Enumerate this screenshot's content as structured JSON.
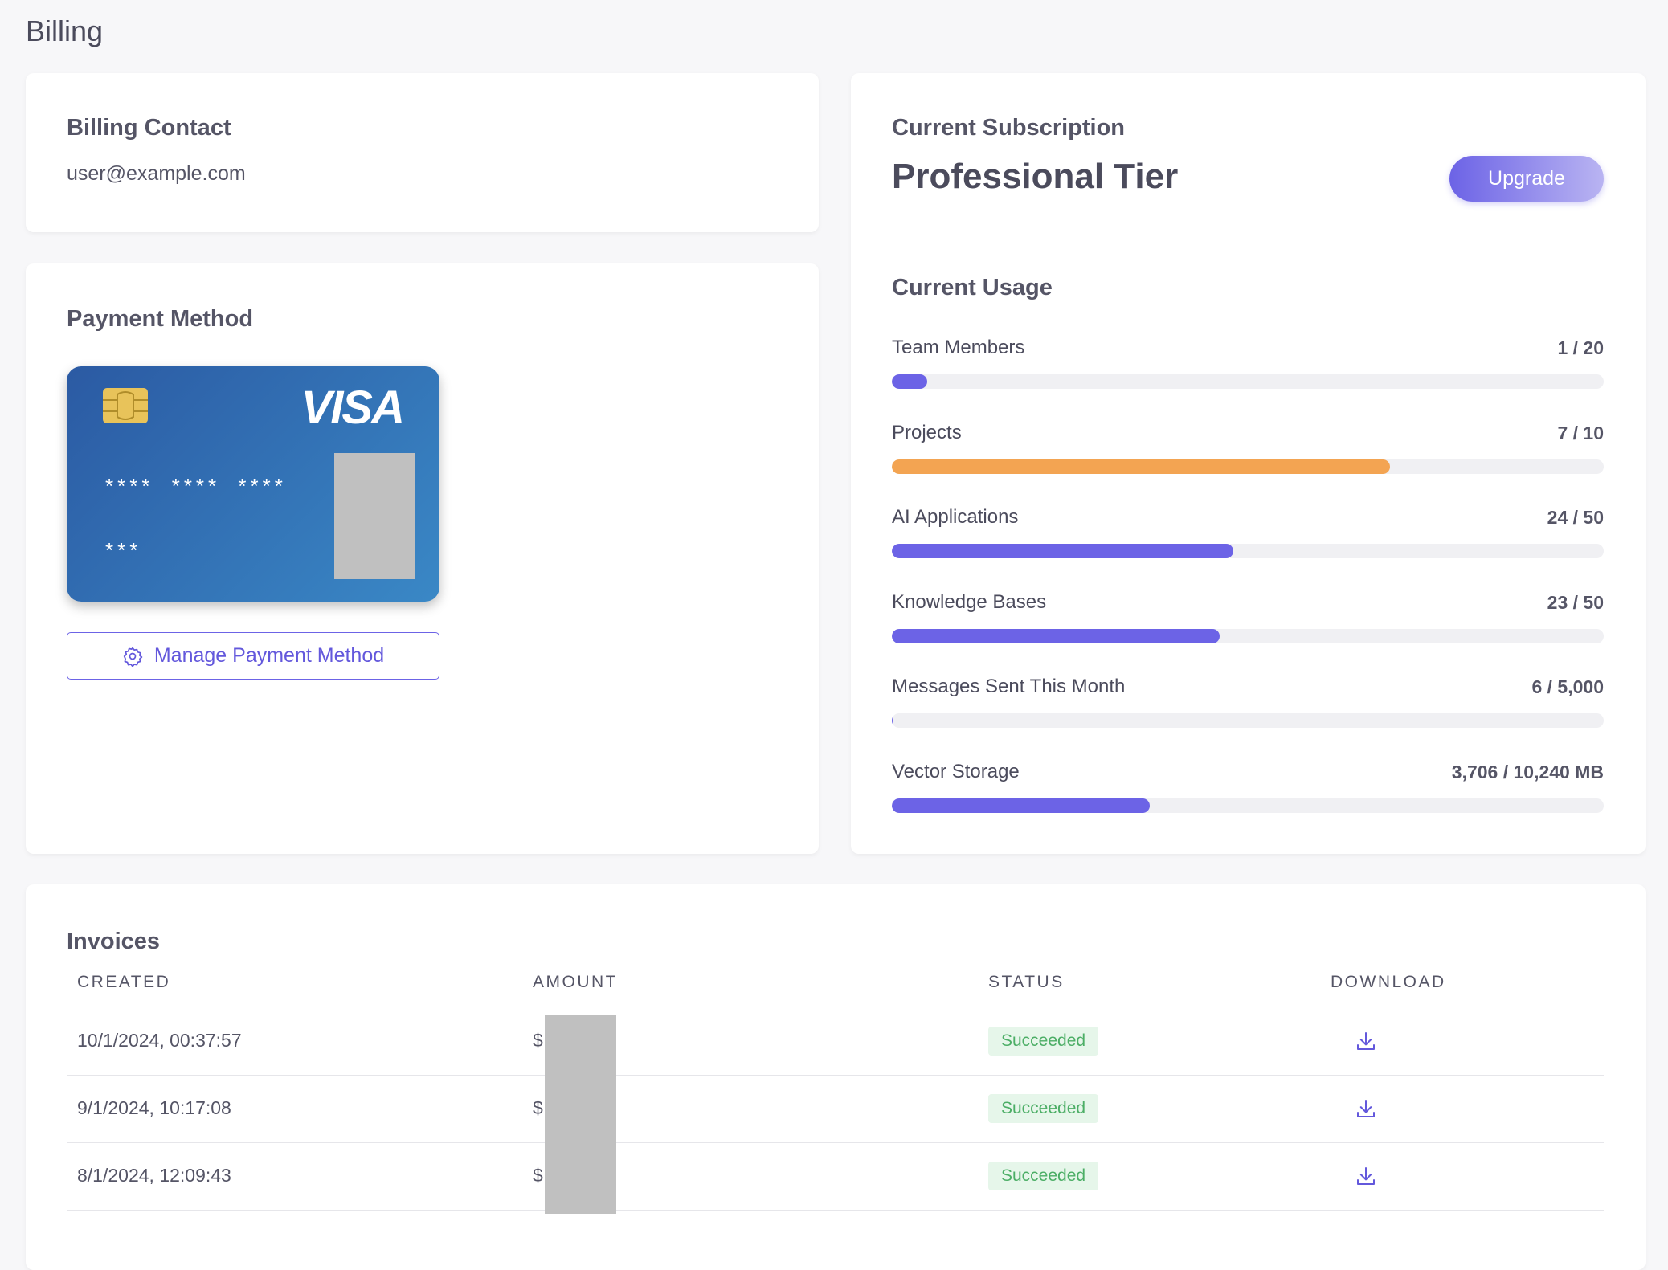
{
  "header": {
    "title": "Billing"
  },
  "billing_contact": {
    "title": "Billing Contact",
    "email": "user@example.com"
  },
  "payment_method": {
    "title": "Payment Method",
    "card": {
      "brand": "VISA",
      "number": "**** **** ****",
      "cvc": "***"
    },
    "button": "Manage Payment Method"
  },
  "subscription": {
    "title": "Current Subscription",
    "plan": "Professional Tier",
    "button": "Upgrade"
  },
  "usage": {
    "title": "Current Usage",
    "items": [
      {
        "name": "Team Members",
        "label": "1 / 20",
        "used": 1,
        "limit": 20,
        "color": "#6c63e6"
      },
      {
        "name": "Projects",
        "label": "7 / 10",
        "used": 7,
        "limit": 10,
        "color": "#f3a452"
      },
      {
        "name": "AI Applications",
        "label": "24 / 50",
        "used": 24,
        "limit": 50,
        "color": "#6c63e6"
      },
      {
        "name": "Knowledge Bases",
        "label": "23 / 50",
        "used": 23,
        "limit": 50,
        "color": "#6c63e6"
      },
      {
        "name": "Messages Sent This Month",
        "label": "6 / 5,000",
        "used": 6,
        "limit": 5000,
        "color": "#6c63e6"
      },
      {
        "name": "Vector Storage",
        "label": "3,706 / 10,240 MB",
        "used": 3706,
        "limit": 10240,
        "color": "#6c63e6"
      }
    ]
  },
  "invoices": {
    "title": "Invoices",
    "columns": [
      "CREATED",
      "AMOUNT",
      "STATUS",
      "DOWNLOAD"
    ],
    "rows": [
      [
        "10/1/2024, 00:37:57",
        "$",
        "Succeeded"
      ],
      [
        "9/1/2024, 10:17:08",
        "$",
        "Succeeded"
      ],
      [
        "8/1/2024, 12:09:43",
        "$",
        "Succeeded"
      ]
    ]
  }
}
